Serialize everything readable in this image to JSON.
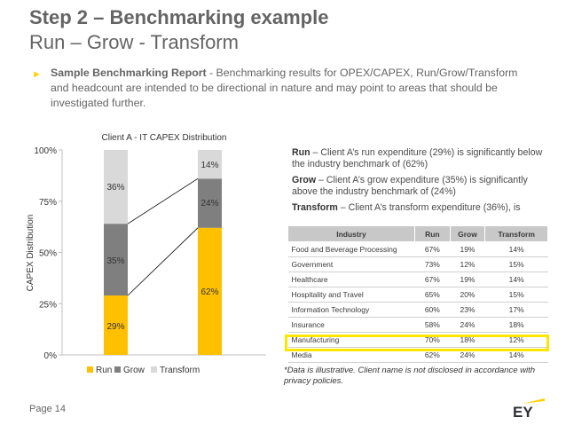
{
  "slide": {
    "title_line1": "Step 2 – Benchmarking example",
    "title_line2": "Run – Grow - Transform",
    "bullet_bold": "Sample Benchmarking Report",
    "bullet_text": " - Benchmarking results for OPEX/CAPEX, Run/Grow/Transform and headcount are intended to be directional in nature and may point to areas that should be investigated further.",
    "page_label": "Page 14",
    "logo_text": "EY",
    "accent_color": "#ffd200"
  },
  "chart_data": {
    "type": "bar",
    "stacked": true,
    "title": "Client A - IT CAPEX Distribution",
    "ylabel": "CAPEX Distribution",
    "ylim": [
      0,
      100
    ],
    "yticks": [
      "0%",
      "25%",
      "50%",
      "75%",
      "100%"
    ],
    "categories": [
      "",
      ""
    ],
    "series": [
      {
        "name": "Run",
        "color": "#ffc000",
        "values": [
          29,
          62
        ],
        "labels": [
          "29%",
          "62%"
        ]
      },
      {
        "name": "Grow",
        "color": "#7f7f7f",
        "values": [
          35,
          24
        ],
        "labels": [
          "35%",
          "24%"
        ]
      },
      {
        "name": "Transform",
        "color": "#d9d9d9",
        "values": [
          36,
          14
        ],
        "labels": [
          "36%",
          "14%"
        ]
      }
    ],
    "legend_position": "bottom",
    "connector_lines": true
  },
  "notes": [
    {
      "bold": "Run",
      "text": " – Client A’s run expenditure (29%) is significantly below the industry benchmark of (62%)"
    },
    {
      "bold": "Grow",
      "text": " – Client A’s grow expenditure (35%) is significantly above the industry benchmark of (24%)"
    },
    {
      "bold": "Transform",
      "text": " – Client A’s transform expenditure (36%), is significantly above the industry benchmark of (14%)"
    }
  ],
  "benchmark_table": {
    "headers": [
      "Industry",
      "Run",
      "Grow",
      "Transform"
    ],
    "rows": [
      [
        "Food and Beverage Processing",
        "67%",
        "19%",
        "14%"
      ],
      [
        "Government",
        "73%",
        "12%",
        "15%"
      ],
      [
        "Healthcare",
        "67%",
        "19%",
        "14%"
      ],
      [
        "Hospitality and Travel",
        "65%",
        "20%",
        "15%"
      ],
      [
        "Information Technology",
        "60%",
        "23%",
        "17%"
      ],
      [
        "Insurance",
        "58%",
        "24%",
        "18%"
      ],
      [
        "Manufacturing",
        "70%",
        "18%",
        "12%"
      ],
      [
        "Media",
        "62%",
        "24%",
        "14%"
      ]
    ],
    "highlight_row": "Media",
    "highlight_color": "#ffe600"
  },
  "footnote": "*Data is illustrative. Client name is not disclosed in accordance with privacy policies."
}
